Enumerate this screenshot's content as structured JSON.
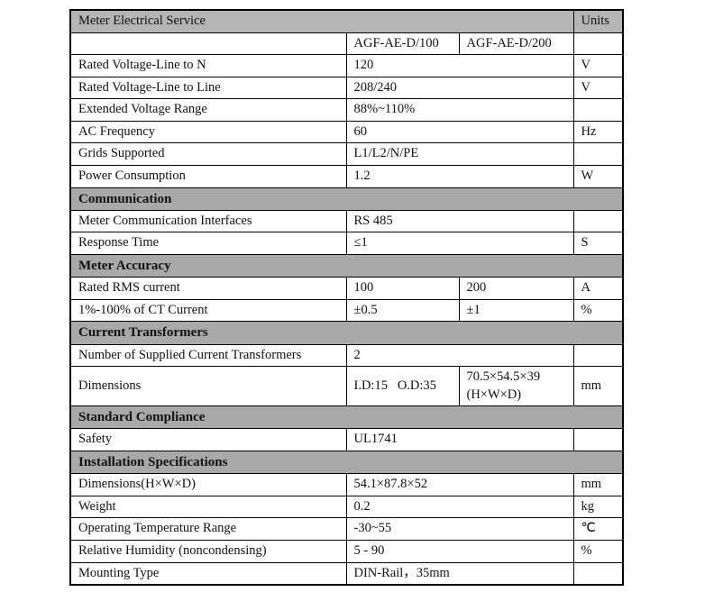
{
  "table": {
    "title": "Meter Electrical Service",
    "units_label": "Units",
    "colors": {
      "header_bg": "#b5b5b5",
      "section_bg": "#a9a9a9",
      "border": "#000000"
    },
    "rows": [
      {
        "kind": "split",
        "label": "",
        "v1": "AGF-AE-D/100",
        "v2": "AGF-AE-D/200",
        "unit": ""
      },
      {
        "kind": "data",
        "label": "Rated Voltage-Line to N",
        "value": "120",
        "unit": "V"
      },
      {
        "kind": "data",
        "label": "Rated Voltage-Line to Line",
        "value": "208/240",
        "unit": "V"
      },
      {
        "kind": "data",
        "label": "Extended Voltage Range",
        "value": "88%~110%",
        "unit": ""
      },
      {
        "kind": "data",
        "label": "AC Frequency",
        "value": "60",
        "unit": "Hz"
      },
      {
        "kind": "data",
        "label": "Grids Supported",
        "value": "L1/L2/N/PE",
        "unit": ""
      },
      {
        "kind": "data",
        "label": "Power Consumption",
        "value": "1.2",
        "unit": "W"
      },
      {
        "kind": "section",
        "label": "Communication"
      },
      {
        "kind": "data",
        "label": "Meter Communication Interfaces",
        "value": "RS 485",
        "unit": ""
      },
      {
        "kind": "data",
        "label": "Response Time",
        "value": "≤1",
        "unit": "S"
      },
      {
        "kind": "section",
        "label": "Meter Accuracy"
      },
      {
        "kind": "split",
        "label": "Rated RMS current",
        "v1": "100",
        "v2": "200",
        "unit": "A"
      },
      {
        "kind": "split",
        "label": "1%-100% of CT Current",
        "v1": "±0.5",
        "v2": "±1",
        "unit": "%"
      },
      {
        "kind": "section",
        "label": "Current Transformers"
      },
      {
        "kind": "data",
        "label": "Number of Supplied Current Transformers",
        "value": "2",
        "unit": ""
      },
      {
        "kind": "split",
        "label": "Dimensions",
        "v1": "I.D:15   O.D:35",
        "v2": "70.5×54.5×39\n(H×W×D)",
        "unit": "mm"
      },
      {
        "kind": "section",
        "label": "Standard Compliance"
      },
      {
        "kind": "data",
        "label": "Safety",
        "value": "UL1741",
        "unit": ""
      },
      {
        "kind": "section",
        "label": "Installation Specifications"
      },
      {
        "kind": "data",
        "label": "Dimensions(H×W×D)",
        "value": "54.1×87.8×52",
        "unit": "mm"
      },
      {
        "kind": "data",
        "label": "Weight",
        "value": "0.2",
        "unit": "kg"
      },
      {
        "kind": "data",
        "label": "Operating Temperature Range",
        "value": "-30~55",
        "unit": "℃"
      },
      {
        "kind": "data",
        "label": "Relative Humidity (noncondensing)",
        "value": "5 - 90",
        "unit": "%"
      },
      {
        "kind": "data",
        "label": "Mounting Type",
        "value": "DIN-Rail，35mm",
        "unit": ""
      }
    ]
  }
}
